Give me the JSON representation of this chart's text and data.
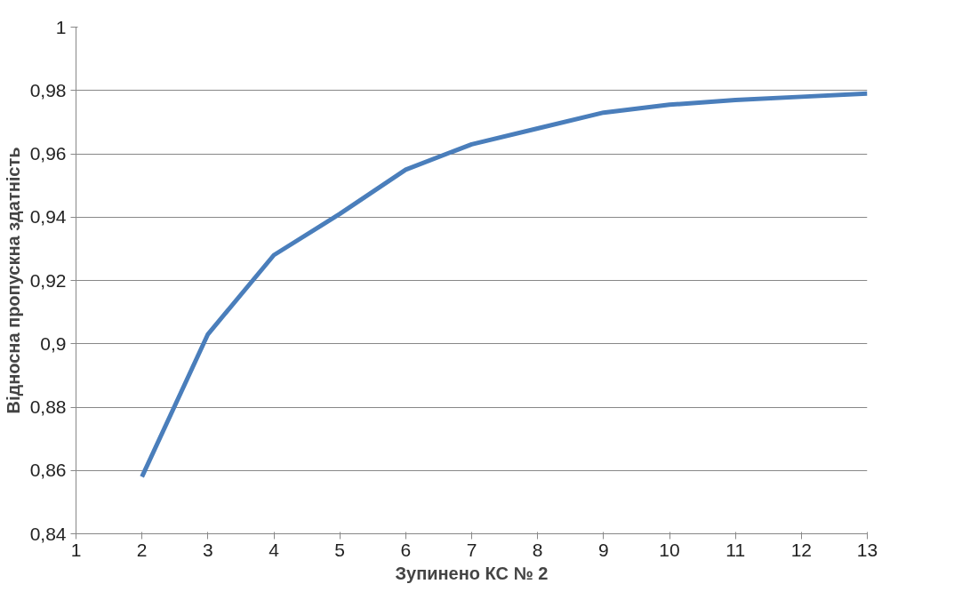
{
  "chart_data": {
    "type": "line",
    "xlabel": "Зупинено КС № 2",
    "ylabel": "Відносна пропускна здатність",
    "x": [
      2,
      3,
      4,
      5,
      6,
      7,
      8,
      9,
      10,
      11,
      12,
      13
    ],
    "series": [
      {
        "color": "#4a7ebb",
        "values": [
          0.858,
          0.903,
          0.928,
          0.941,
          0.955,
          0.963,
          0.968,
          0.973,
          0.9755,
          0.977,
          0.978,
          0.979
        ]
      }
    ],
    "xlim": [
      1,
      13
    ],
    "xticks": [
      1,
      2,
      3,
      4,
      5,
      6,
      7,
      8,
      9,
      10,
      11,
      12,
      13
    ],
    "ylim": [
      0.84,
      1
    ],
    "yticks": [
      {
        "value": 0.84,
        "label": "0,84"
      },
      {
        "value": 0.86,
        "label": "0,86"
      },
      {
        "value": 0.88,
        "label": "0,88"
      },
      {
        "value": 0.9,
        "label": "0,9"
      },
      {
        "value": 0.92,
        "label": "0,92"
      },
      {
        "value": 0.94,
        "label": "0,94"
      },
      {
        "value": 0.96,
        "label": "0,96"
      },
      {
        "value": 0.98,
        "label": "0,98"
      },
      {
        "value": 1,
        "label": "1"
      }
    ],
    "grid": "y",
    "line_style": "solid",
    "marker": "none"
  }
}
